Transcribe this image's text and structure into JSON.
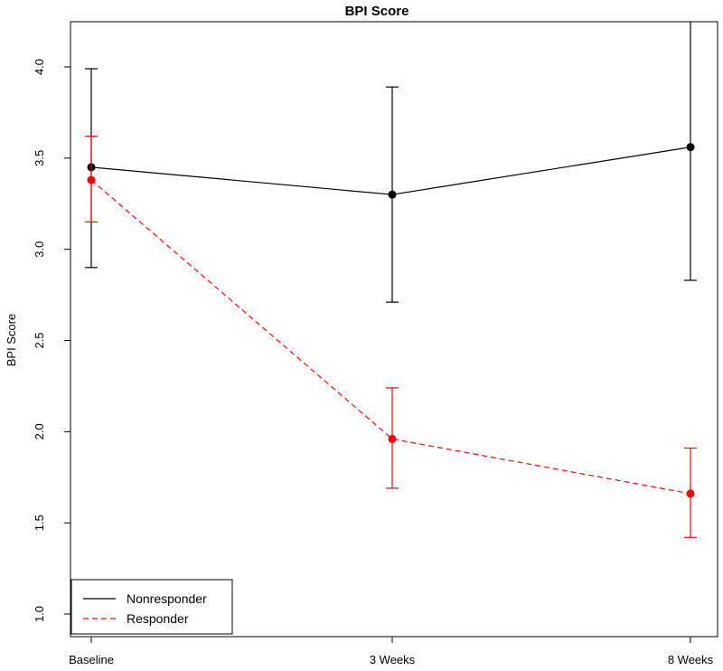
{
  "chart_data": {
    "type": "line",
    "title": "BPI Score",
    "xlabel": "",
    "ylabel": "BPI Score",
    "categories": [
      "Baseline",
      "3 Weeks",
      "8 Weeks"
    ],
    "ylim": [
      0.95,
      4.15
    ],
    "yticks": [
      1.0,
      1.5,
      2.0,
      2.5,
      3.0,
      3.5,
      4.0
    ],
    "ytick_labels": [
      "1.0",
      "1.5",
      "2.0",
      "2.5",
      "3.0",
      "3.5",
      "4.0"
    ],
    "grid": false,
    "legend_position": "bottom-left",
    "series": [
      {
        "name": "Nonresponder",
        "color": "#000000",
        "line_style": "solid",
        "values": [
          3.45,
          3.3,
          3.56
        ],
        "error_low": [
          2.9,
          2.71,
          2.83
        ],
        "error_high": [
          3.99,
          3.89,
          4.3
        ]
      },
      {
        "name": "Responder",
        "color": "#ff0000",
        "line_style": "dashed",
        "values": [
          3.38,
          1.96,
          1.66
        ],
        "error_low": [
          3.15,
          1.69,
          1.42
        ],
        "error_high": [
          3.62,
          2.24,
          1.91
        ]
      }
    ]
  }
}
